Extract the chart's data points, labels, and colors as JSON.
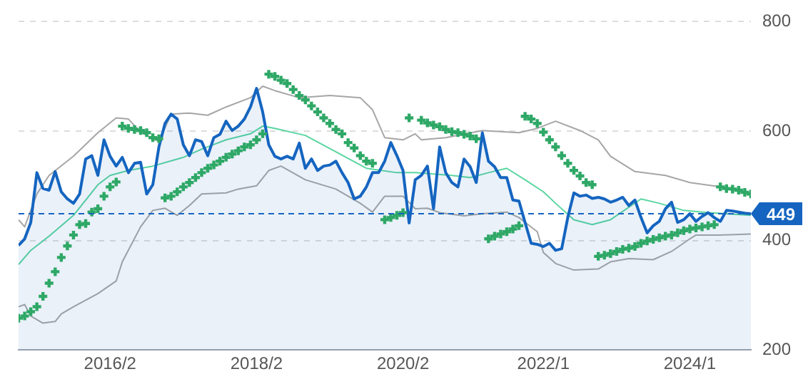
{
  "chart_data": {
    "type": "area",
    "grid": "y",
    "xlim": [
      "2014-11",
      "2024-11"
    ],
    "ylim": [
      200,
      800
    ],
    "yticks": [
      200,
      400,
      600,
      800
    ],
    "xticks": [
      {
        "value": "2016-02",
        "label": "2016/2"
      },
      {
        "value": "2018-02",
        "label": "2018/2"
      },
      {
        "value": "2020-02",
        "label": "2020/2"
      },
      {
        "value": "2022-01",
        "label": "2022/1"
      },
      {
        "value": "2024-01",
        "label": "2024/1"
      }
    ],
    "ref_lines": [
      {
        "axis": "y",
        "value": 449,
        "label": "449",
        "color": "#1565c0",
        "line_style": "dashed"
      }
    ],
    "x": [
      "2014-11",
      "2014-12",
      "2015-01",
      "2015-02",
      "2015-03",
      "2015-04",
      "2015-05",
      "2015-06",
      "2015-07",
      "2015-08",
      "2015-09",
      "2015-10",
      "2015-11",
      "2015-12",
      "2016-01",
      "2016-02",
      "2016-03",
      "2016-04",
      "2016-05",
      "2016-06",
      "2016-07",
      "2016-08",
      "2016-09",
      "2016-10",
      "2016-11",
      "2016-12",
      "2017-01",
      "2017-02",
      "2017-03",
      "2017-04",
      "2017-05",
      "2017-06",
      "2017-07",
      "2017-08",
      "2017-09",
      "2017-10",
      "2017-11",
      "2017-12",
      "2018-01",
      "2018-02",
      "2018-03",
      "2018-04",
      "2018-05",
      "2018-06",
      "2018-07",
      "2018-08",
      "2018-09",
      "2018-10",
      "2018-11",
      "2018-12",
      "2019-01",
      "2019-02",
      "2019-03",
      "2019-04",
      "2019-05",
      "2019-06",
      "2019-07",
      "2019-08",
      "2019-09",
      "2019-10",
      "2019-11",
      "2019-12",
      "2020-01",
      "2020-02",
      "2020-03",
      "2020-04",
      "2020-05",
      "2020-06",
      "2020-07",
      "2020-08",
      "2020-09",
      "2020-10",
      "2020-11",
      "2020-12",
      "2021-01",
      "2021-02",
      "2021-03",
      "2021-04",
      "2021-05",
      "2021-06",
      "2021-07",
      "2021-08",
      "2021-09",
      "2021-10",
      "2021-11",
      "2021-12",
      "2022-01",
      "2022-02",
      "2022-03",
      "2022-04",
      "2022-05",
      "2022-06",
      "2022-07",
      "2022-08",
      "2022-09",
      "2022-10",
      "2022-11",
      "2022-12",
      "2023-01",
      "2023-02",
      "2023-03",
      "2023-04",
      "2023-05",
      "2023-06",
      "2023-07",
      "2023-08",
      "2023-09",
      "2023-10",
      "2023-11",
      "2023-12",
      "2024-01",
      "2024-02",
      "2024-03",
      "2024-04",
      "2024-05",
      "2024-06",
      "2024-07",
      "2024-08",
      "2024-09",
      "2024-10",
      "2024-11"
    ],
    "series": [
      {
        "type": "line",
        "color": "#a6a6a6",
        "x": [
          "2014-11",
          "2014-12",
          "2015-02",
          "2015-04",
          "2015-08",
          "2015-12",
          "2016-03",
          "2016-05",
          "2016-07",
          "2016-10",
          "2016-12",
          "2017-03",
          "2017-06",
          "2017-09",
          "2018-01",
          "2018-03",
          "2018-05",
          "2018-09",
          "2019-02",
          "2019-07",
          "2019-09",
          "2019-11",
          "2020-02",
          "2020-04",
          "2020-05",
          "2020-09",
          "2021-03",
          "2021-09",
          "2021-12",
          "2022-03",
          "2022-07",
          "2022-10",
          "2022-12",
          "2023-04",
          "2023-09",
          "2024-01",
          "2024-06",
          "2024-11"
        ],
        "values": [
          438,
          425,
          485,
          519,
          554,
          597,
          624,
          622,
          598,
          581,
          631,
          633,
          629,
          644,
          661,
          682,
          674,
          661,
          665,
          661,
          639,
          588,
          584,
          595,
          584,
          588,
          601,
          597,
          605,
          618,
          601,
          584,
          554,
          526,
          519,
          506,
          498,
          485
        ]
      },
      {
        "type": "line",
        "color": "#a6a6a6",
        "x": [
          "2014-11",
          "2014-12",
          "2015-01",
          "2015-03",
          "2015-05",
          "2015-06",
          "2015-08",
          "2015-12",
          "2016-03",
          "2016-04",
          "2016-07",
          "2016-09",
          "2016-11",
          "2017-01",
          "2017-03",
          "2017-05",
          "2017-09",
          "2017-11",
          "2018-02",
          "2018-04",
          "2018-06",
          "2018-10",
          "2019-03",
          "2019-07",
          "2019-09",
          "2019-11",
          "2020-02",
          "2020-04",
          "2020-06",
          "2020-08",
          "2020-12",
          "2021-03",
          "2021-07",
          "2021-09",
          "2021-12",
          "2022-01",
          "2022-03",
          "2022-06",
          "2022-10",
          "2022-12",
          "2023-03",
          "2023-07",
          "2023-10",
          "2024-01",
          "2024-02",
          "2024-06",
          "2024-11"
        ],
        "values": [
          279,
          283,
          262,
          249,
          252,
          266,
          279,
          303,
          326,
          361,
          425,
          455,
          459,
          446,
          464,
          485,
          487,
          494,
          500,
          528,
          536,
          511,
          494,
          468,
          452,
          481,
          481,
          458,
          459,
          451,
          445,
          449,
          452,
          442,
          416,
          378,
          358,
          346,
          348,
          361,
          367,
          365,
          380,
          403,
          410,
          410,
          412
        ]
      },
      {
        "type": "line",
        "color": "#5ad6a0",
        "x": [
          "2014-11",
          "2015-01",
          "2015-04",
          "2015-08",
          "2015-12",
          "2016-02",
          "2016-05",
          "2016-09",
          "2017-02",
          "2017-05",
          "2017-09",
          "2018-01",
          "2018-03",
          "2018-05",
          "2018-10",
          "2019-03",
          "2019-08",
          "2020-01",
          "2020-04",
          "2020-10",
          "2021-01",
          "2021-04",
          "2021-07",
          "2021-10",
          "2022-01",
          "2022-03",
          "2022-06",
          "2022-09",
          "2022-12",
          "2023-05",
          "2023-08",
          "2023-12",
          "2024-04",
          "2024-11"
        ],
        "values": [
          356,
          382,
          408,
          446,
          502,
          519,
          528,
          536,
          552,
          567,
          584,
          595,
          609,
          605,
          592,
          562,
          532,
          524,
          524,
          519,
          515,
          524,
          532,
          511,
          489,
          468,
          438,
          429,
          438,
          476,
          468,
          455,
          451,
          446
        ]
      },
      {
        "color": "#1565c0",
        "values": [
          391,
          403,
          433,
          524,
          495,
          492,
          526,
          489,
          476,
          468,
          485,
          549,
          555,
          519,
          584,
          554,
          536,
          552,
          524,
          541,
          543,
          485,
          502,
          571,
          614,
          631,
          622,
          575,
          555,
          584,
          581,
          555,
          588,
          594,
          618,
          601,
          609,
          622,
          644,
          678,
          635,
          575,
          554,
          549,
          554,
          549,
          578,
          532,
          549,
          528,
          536,
          538,
          545,
          524,
          506,
          476,
          481,
          498,
          524,
          524,
          545,
          579,
          555,
          528,
          432,
          511,
          519,
          536,
          458,
          571,
          524,
          506,
          498,
          549,
          535,
          506,
          597,
          545,
          535,
          515,
          515,
          474,
          472,
          433,
          395,
          393,
          389,
          395,
          382,
          385,
          442,
          487,
          481,
          483,
          477,
          479,
          476,
          470,
          474,
          479,
          464,
          474,
          442,
          414,
          427,
          435,
          458,
          470,
          433,
          438,
          449,
          435,
          444,
          451,
          442,
          435,
          455,
          454,
          452,
          450,
          449
        ]
      },
      {
        "type": "scatter",
        "marker": "cross",
        "color": "#2ea866",
        "values": [
          258,
          262,
          270,
          279,
          298,
          322,
          343,
          369,
          390,
          410,
          429,
          431,
          452,
          458,
          481,
          498,
          507,
          609,
          605,
          603,
          601,
          597,
          588,
          586,
          478,
          481,
          489,
          498,
          506,
          515,
          524,
          532,
          538,
          545,
          552,
          558,
          564,
          571,
          575,
          584,
          595,
          704,
          700,
          693,
          687,
          676,
          665,
          657,
          646,
          635,
          624,
          614,
          603,
          595,
          579,
          569,
          555,
          545,
          541,
          null,
          438,
          442,
          446,
          451,
          624,
          null,
          620,
          615,
          611,
          608,
          603,
          599,
          597,
          594,
          591,
          586,
          null,
          403,
          408,
          412,
          416,
          421,
          427,
          627,
          622,
          614,
          598,
          584,
          571,
          555,
          541,
          528,
          518,
          506,
          502,
          371,
          373,
          376,
          380,
          384,
          386,
          389,
          395,
          399,
          402,
          405,
          408,
          410,
          414,
          418,
          421,
          423,
          425,
          427,
          429,
          498,
          495,
          494,
          492,
          488,
          485
        ]
      }
    ]
  }
}
